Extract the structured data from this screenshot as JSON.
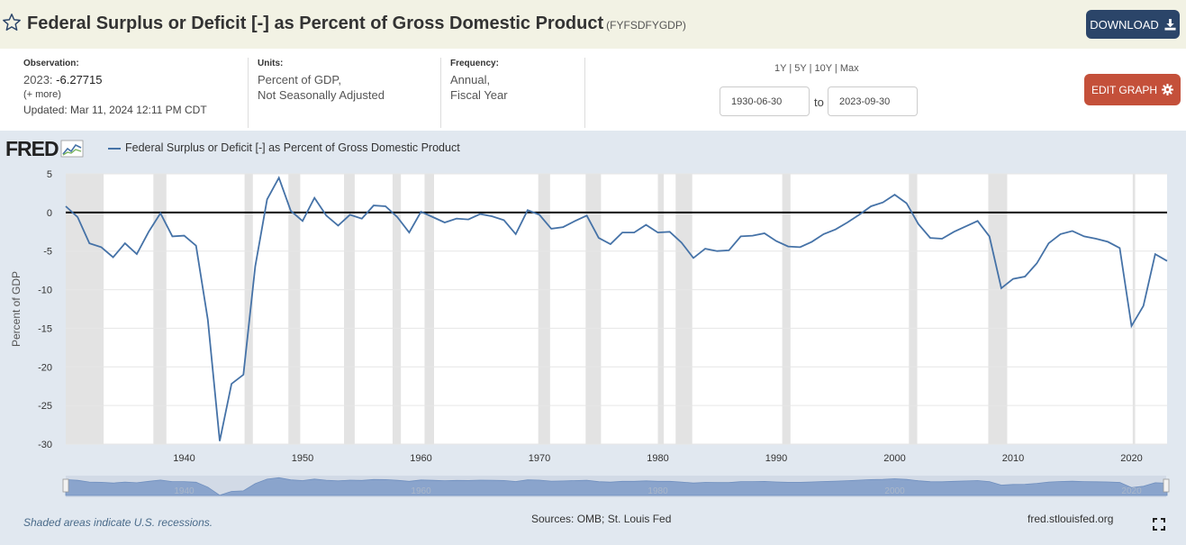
{
  "header": {
    "title": "Federal Surplus or Deficit [-] as Percent of Gross Domestic Product",
    "series_id": "(FYFSDFYGDP)",
    "download_label": "DOWNLOAD"
  },
  "observation": {
    "label": "Observation:",
    "period": "2023:",
    "value": "-6.27715",
    "more": "(+ more)",
    "updated": "Updated: Mar 11, 2024 12:11 PM CDT"
  },
  "units": {
    "label": "Units:",
    "line1": "Percent of GDP,",
    "line2": "Not Seasonally Adjusted"
  },
  "frequency": {
    "label": "Frequency:",
    "line1": "Annual,",
    "line2": "Fiscal Year"
  },
  "range": {
    "links": [
      "1Y",
      "5Y",
      "10Y",
      "Max"
    ],
    "separator": " | ",
    "start": "1930-06-30",
    "to_label": "to",
    "end": "2023-09-30"
  },
  "edit_label": "EDIT GRAPH",
  "logo_text": "FRED",
  "footer": {
    "recession_note": "Shaded areas indicate U.S. recessions.",
    "sources": "Sources: OMB; St. Louis Fed",
    "site": "fred.stlouisfed.org"
  },
  "colors": {
    "line": "#4572a7",
    "recession": "#e3e3e3",
    "download": "#2b4569",
    "edit": "#c4503a"
  },
  "icons": {
    "star": "star-icon",
    "download": "download-icon",
    "gear": "gear-icon",
    "fullscreen": "fullscreen-icon"
  },
  "chart_data": {
    "type": "line",
    "title": "",
    "legend": "Federal Surplus or Deficit [-] as Percent of Gross Domestic Product",
    "xlabel": "",
    "ylabel": "Percent of GDP",
    "xlim": [
      1930,
      2023
    ],
    "ylim": [
      -30,
      5
    ],
    "x_ticks": [
      1940,
      1950,
      1960,
      1970,
      1980,
      1990,
      2000,
      2010,
      2020
    ],
    "y_ticks": [
      5,
      0,
      -5,
      -10,
      -15,
      -20,
      -25,
      -30
    ],
    "zero_line": 0,
    "recessions": [
      [
        1929.6,
        1933.2
      ],
      [
        1937.4,
        1938.5
      ],
      [
        1945.1,
        1945.8
      ],
      [
        1948.8,
        1949.8
      ],
      [
        1953.5,
        1954.4
      ],
      [
        1957.6,
        1958.3
      ],
      [
        1960.3,
        1961.1
      ],
      [
        1969.9,
        1970.9
      ],
      [
        1973.9,
        1975.2
      ],
      [
        1980.0,
        1980.5
      ],
      [
        1981.5,
        1982.9
      ],
      [
        1990.5,
        1991.2
      ],
      [
        2001.2,
        2001.9
      ],
      [
        2007.9,
        2009.5
      ],
      [
        2020.1,
        2020.3
      ]
    ],
    "series": [
      {
        "name": "Federal Surplus or Deficit [-] as Percent of Gross Domestic Product",
        "x": [
          1930,
          1931,
          1932,
          1933,
          1934,
          1935,
          1936,
          1937,
          1938,
          1939,
          1940,
          1941,
          1942,
          1943,
          1944,
          1945,
          1946,
          1947,
          1948,
          1949,
          1950,
          1951,
          1952,
          1953,
          1954,
          1955,
          1956,
          1957,
          1958,
          1959,
          1960,
          1961,
          1962,
          1963,
          1964,
          1965,
          1966,
          1967,
          1968,
          1969,
          1970,
          1971,
          1972,
          1973,
          1974,
          1975,
          1976,
          1977,
          1978,
          1979,
          1980,
          1981,
          1982,
          1983,
          1984,
          1985,
          1986,
          1987,
          1988,
          1989,
          1990,
          1991,
          1992,
          1993,
          1994,
          1995,
          1996,
          1997,
          1998,
          1999,
          2000,
          2001,
          2002,
          2003,
          2004,
          2005,
          2006,
          2007,
          2008,
          2009,
          2010,
          2011,
          2012,
          2013,
          2014,
          2015,
          2016,
          2017,
          2018,
          2019,
          2020,
          2021,
          2022,
          2023
        ],
        "values": [
          0.8,
          -0.6,
          -4.0,
          -4.5,
          -5.8,
          -4.0,
          -5.4,
          -2.5,
          -0.1,
          -3.1,
          -3.0,
          -4.3,
          -13.9,
          -29.6,
          -22.2,
          -21.0,
          -7.0,
          1.7,
          4.5,
          0.2,
          -1.1,
          1.9,
          -0.4,
          -1.7,
          -0.3,
          -0.8,
          0.9,
          0.8,
          -0.6,
          -2.6,
          0.1,
          -0.6,
          -1.3,
          -0.8,
          -0.9,
          -0.2,
          -0.5,
          -1.0,
          -2.8,
          0.3,
          -0.3,
          -2.1,
          -1.9,
          -1.1,
          -0.4,
          -3.3,
          -4.1,
          -2.6,
          -2.6,
          -1.6,
          -2.6,
          -2.5,
          -3.9,
          -5.9,
          -4.7,
          -5.0,
          -4.9,
          -3.1,
          -3.0,
          -2.7,
          -3.7,
          -4.4,
          -4.5,
          -3.8,
          -2.8,
          -2.2,
          -1.3,
          -0.3,
          0.8,
          1.3,
          2.3,
          1.2,
          -1.5,
          -3.3,
          -3.4,
          -2.5,
          -1.8,
          -1.1,
          -3.1,
          -9.8,
          -8.6,
          -8.3,
          -6.6,
          -4.0,
          -2.8,
          -2.4,
          -3.1,
          -3.4,
          -3.8,
          -4.6,
          -14.7,
          -12.1,
          -5.4,
          -6.28
        ]
      }
    ]
  }
}
